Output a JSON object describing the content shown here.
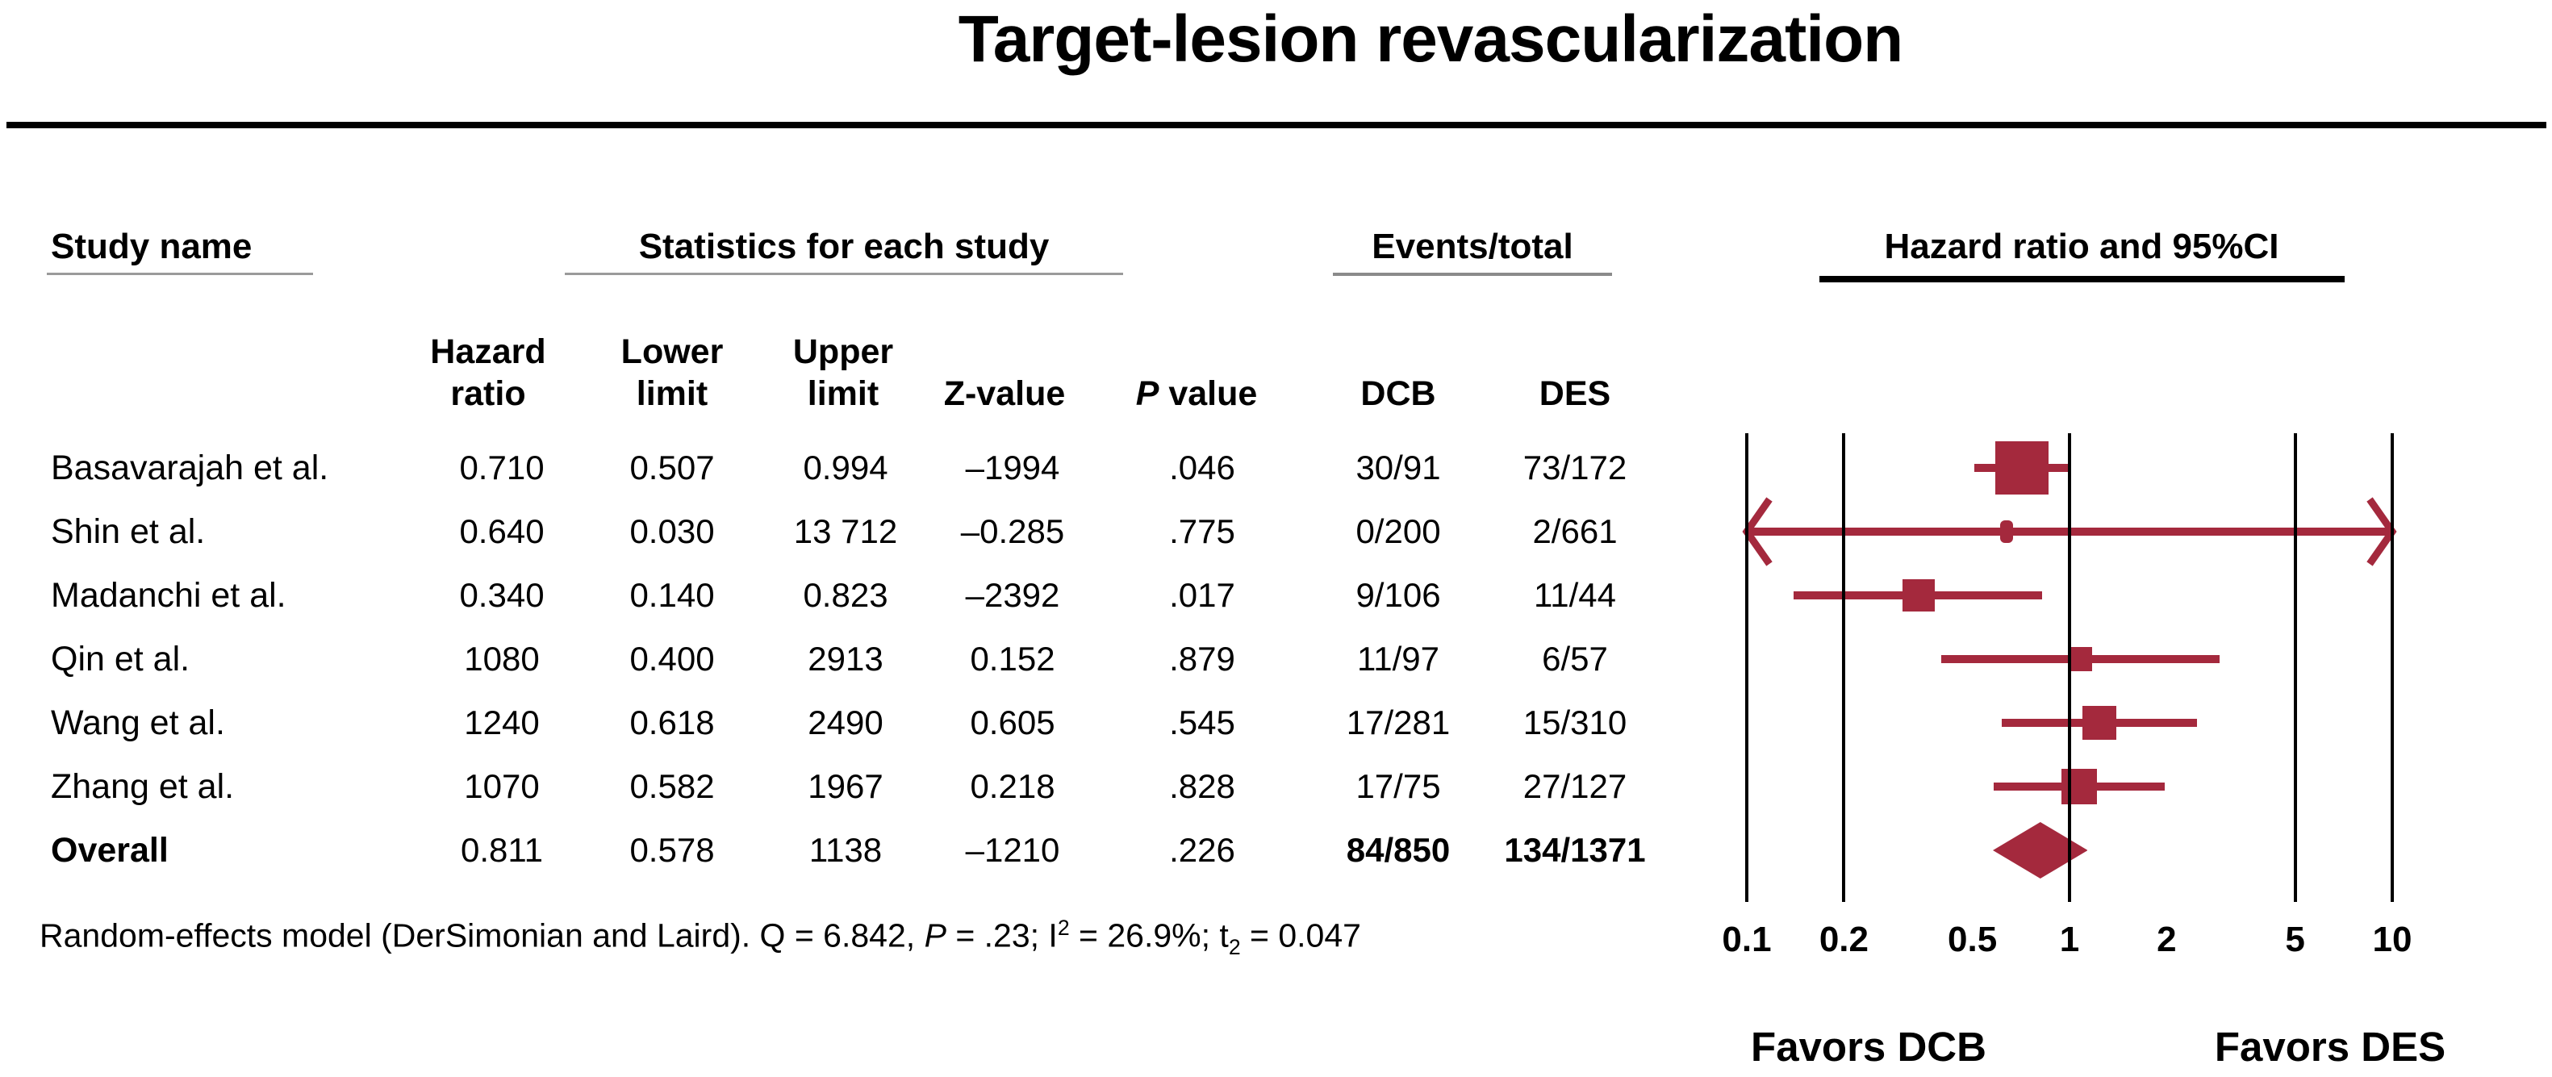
{
  "title": "Target-lesion revascularization",
  "colors": {
    "marker": "#a4293d",
    "grid": "#000000",
    "underline_gray": "#9a9a9a",
    "underline_dark": "#000000"
  },
  "headers": {
    "study_name": "Study name",
    "stats": "Statistics for each study",
    "events": "Events/total",
    "hr_ci": "Hazard ratio and 95%CI",
    "stat_cols": [
      {
        "l1": "Hazard",
        "l2": "ratio"
      },
      {
        "l1": "Lower",
        "l2": "limit"
      },
      {
        "l1": "Upper",
        "l2": "limit"
      },
      {
        "l2": "Z-value"
      },
      {
        "italic": "P",
        "l2": " value"
      }
    ],
    "event_cols": [
      "DCB",
      "DES"
    ]
  },
  "rows": [
    {
      "study": "Basavarajah et al.",
      "hr": "0.710",
      "lower": "0.507",
      "upper": "0.994",
      "z": "–1994",
      "p": ".046",
      "dcb": "30/91",
      "des": "73/172",
      "overall": false
    },
    {
      "study": "Shin et al.",
      "hr": "0.640",
      "lower": "0.030",
      "upper": "13 712",
      "z": "–0.285",
      "p": ".775",
      "dcb": "0/200",
      "des": "2/661",
      "overall": false
    },
    {
      "study": "Madanchi et al.",
      "hr": "0.340",
      "lower": "0.140",
      "upper": "0.823",
      "z": "–2392",
      "p": ".017",
      "dcb": "9/106",
      "des": "11/44",
      "overall": false
    },
    {
      "study": "Qin et al.",
      "hr": "1080",
      "lower": "0.400",
      "upper": "2913",
      "z": "0.152",
      "p": ".879",
      "dcb": "11/97",
      "des": "6/57",
      "overall": false
    },
    {
      "study": "Wang et al.",
      "hr": "1240",
      "lower": "0.618",
      "upper": "2490",
      "z": "0.605",
      "p": ".545",
      "dcb": "17/281",
      "des": "15/310",
      "overall": false
    },
    {
      "study": "Zhang et al.",
      "hr": "1070",
      "lower": "0.582",
      "upper": "1967",
      "z": "0.218",
      "p": ".828",
      "dcb": "17/75",
      "des": "27/127",
      "overall": false
    },
    {
      "study": "Overall",
      "hr": "0.811",
      "lower": "0.578",
      "upper": "1138",
      "z": "–1210",
      "p": ".226",
      "dcb": "84/850",
      "des": "134/1371",
      "overall": true
    }
  ],
  "chart_data": {
    "type": "forest",
    "title": "Hazard ratio and 95%CI",
    "x_axis": {
      "scale": "log10",
      "range": [
        0.1,
        10
      ],
      "ticks": [
        0.1,
        0.2,
        0.5,
        1,
        2,
        5,
        10
      ],
      "tick_labels": [
        "0.1",
        "0.2",
        "0.5",
        "1",
        "2",
        "5",
        "10"
      ],
      "gridline_values": [
        0.1,
        0.2,
        1,
        5,
        10
      ]
    },
    "series": [
      {
        "study": "Basavarajah et al.",
        "hr": 0.71,
        "ci_low": 0.507,
        "ci_high": 0.994,
        "marker": "square",
        "size": 66
      },
      {
        "study": "Shin et al.",
        "hr": 0.64,
        "ci_low": 0.03,
        "ci_high": 13.712,
        "marker": "square",
        "size": 16,
        "clipped": "both"
      },
      {
        "study": "Madanchi et al.",
        "hr": 0.34,
        "ci_low": 0.14,
        "ci_high": 0.823,
        "marker": "square",
        "size": 40
      },
      {
        "study": "Qin et al.",
        "hr": 1.08,
        "ci_low": 0.4,
        "ci_high": 2.913,
        "marker": "square",
        "size": 30
      },
      {
        "study": "Wang et al.",
        "hr": 1.24,
        "ci_low": 0.618,
        "ci_high": 2.49,
        "marker": "square",
        "size": 42
      },
      {
        "study": "Zhang et al.",
        "hr": 1.07,
        "ci_low": 0.582,
        "ci_high": 1.967,
        "marker": "square",
        "size": 44
      },
      {
        "study": "Overall",
        "hr": 0.811,
        "ci_low": 0.578,
        "ci_high": 1.138,
        "marker": "diamond"
      }
    ],
    "favors_left": "Favors DCB",
    "favors_right": "Favors DES"
  },
  "footnote_segments": [
    {
      "t": "Random-effects model (DerSimonian and Laird). Q = 6.842, "
    },
    {
      "t": "P",
      "style": "i"
    },
    {
      "t": " = .23; I"
    },
    {
      "t": "2",
      "style": "sup"
    },
    {
      "t": " = 26.9%; t"
    },
    {
      "t": "2",
      "style": "sub"
    },
    {
      "t": " = 0.047"
    }
  ]
}
